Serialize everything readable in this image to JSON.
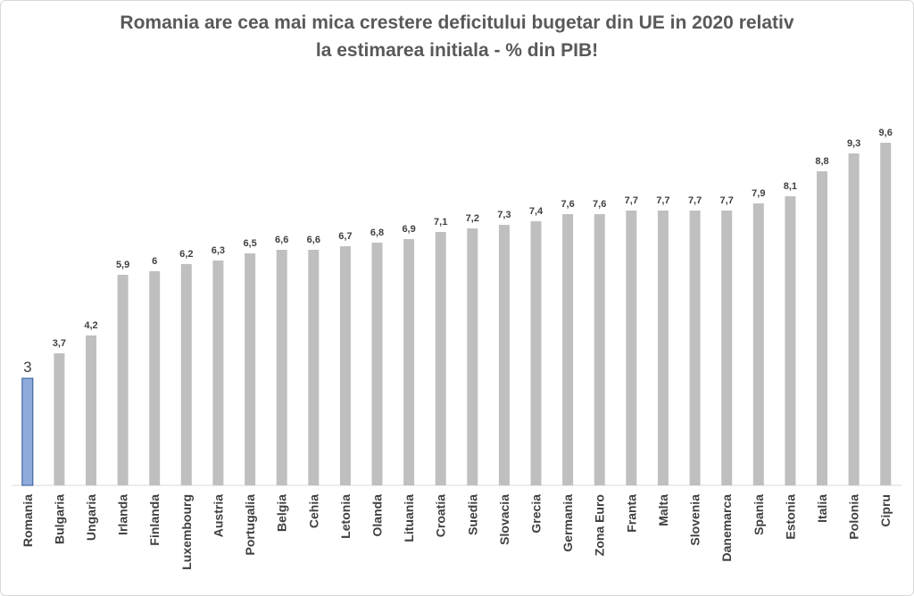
{
  "chart_data": {
    "type": "bar",
    "title_lines": [
      "Romania are cea mai mica crestere deficitului bugetar din UE in 2020 relativ",
      "la estimarea initiala - % din PIB!"
    ],
    "categories": [
      "Romania",
      "Bulgaria",
      "Ungaria",
      "Irlanda",
      "Finlanda",
      "Luxembourg",
      "Austria",
      "Portugalia",
      "Belgia",
      "Cehia",
      "Letonia",
      "Olanda",
      "Lituania",
      "Croatia",
      "Suedia",
      "Slovacia",
      "Grecia",
      "Germania",
      "Zona Euro",
      "Franta",
      "Malta",
      "Slovenia",
      "Danemarca",
      "Spania",
      "Estonia",
      "Italia",
      "Polonia",
      "Cipru"
    ],
    "values": [
      3,
      3.7,
      4.2,
      5.9,
      6,
      6.2,
      6.3,
      6.5,
      6.6,
      6.6,
      6.7,
      6.8,
      6.9,
      7.1,
      7.2,
      7.3,
      7.4,
      7.6,
      7.6,
      7.7,
      7.7,
      7.7,
      7.7,
      7.9,
      8.1,
      8.8,
      9.3,
      9.6
    ],
    "value_labels": [
      "3",
      "3,7",
      "4,2",
      "5,9",
      "6",
      "6,2",
      "6,3",
      "6,5",
      "6,6",
      "6,6",
      "6,7",
      "6,8",
      "6,9",
      "7,1",
      "7,2",
      "7,3",
      "7,4",
      "7,6",
      "7,6",
      "7,7",
      "7,7",
      "7,7",
      "7,7",
      "7,9",
      "8,1",
      "8,8",
      "9,3",
      "9,6"
    ],
    "highlight_index": 0,
    "ylim": [
      0,
      10
    ],
    "grid": false,
    "legend": "none",
    "colors": {
      "bar": "#bfbfbf",
      "highlight_fill": "#8eaadb",
      "highlight_stroke": "#2f5597",
      "highlight_label": "#8eaadb",
      "title": "#595959",
      "text": "#404040",
      "axis": "#d9d9d9"
    }
  }
}
